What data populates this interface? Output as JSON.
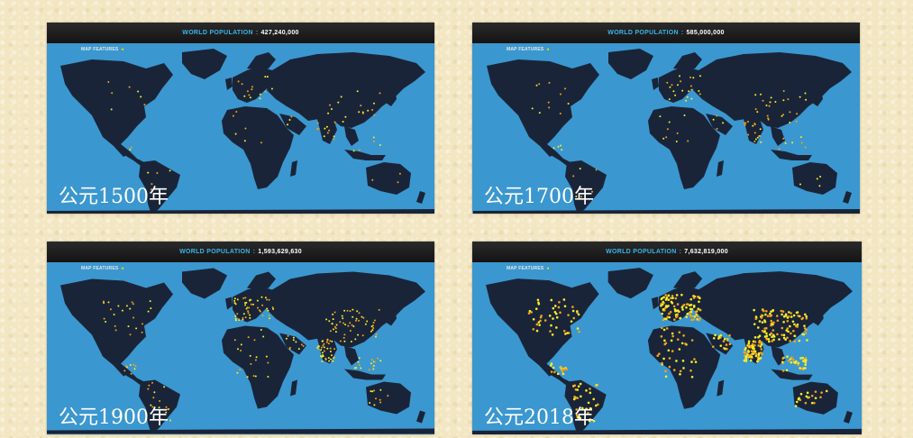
{
  "panels": [
    {
      "population_label": "WORLD POPULATION",
      "population_value": "427,240,000",
      "map_features_label": "MAP FEATURES",
      "year_caption": "公元1500年",
      "dot_density": 0.15
    },
    {
      "population_label": "WORLD POPULATION",
      "population_value": "585,000,000",
      "map_features_label": "MAP FEATURES",
      "year_caption": "公元1700年",
      "dot_density": 0.22
    },
    {
      "population_label": "WORLD POPULATION",
      "population_value": "1,593,629,630",
      "map_features_label": "MAP FEATURES",
      "year_caption": "公元1900年",
      "dot_density": 0.5
    },
    {
      "population_label": "WORLD POPULATION",
      "population_value": "7,632,819,000",
      "map_features_label": "MAP FEATURES",
      "year_caption": "公元2018年",
      "dot_density": 1.0
    }
  ],
  "colors": {
    "ocean": "#3b97cf",
    "land": "#1a2438",
    "dot_orange": "#f2a21a",
    "dot_yellow": "#f7ee2a",
    "accent": "#38b3ea"
  }
}
